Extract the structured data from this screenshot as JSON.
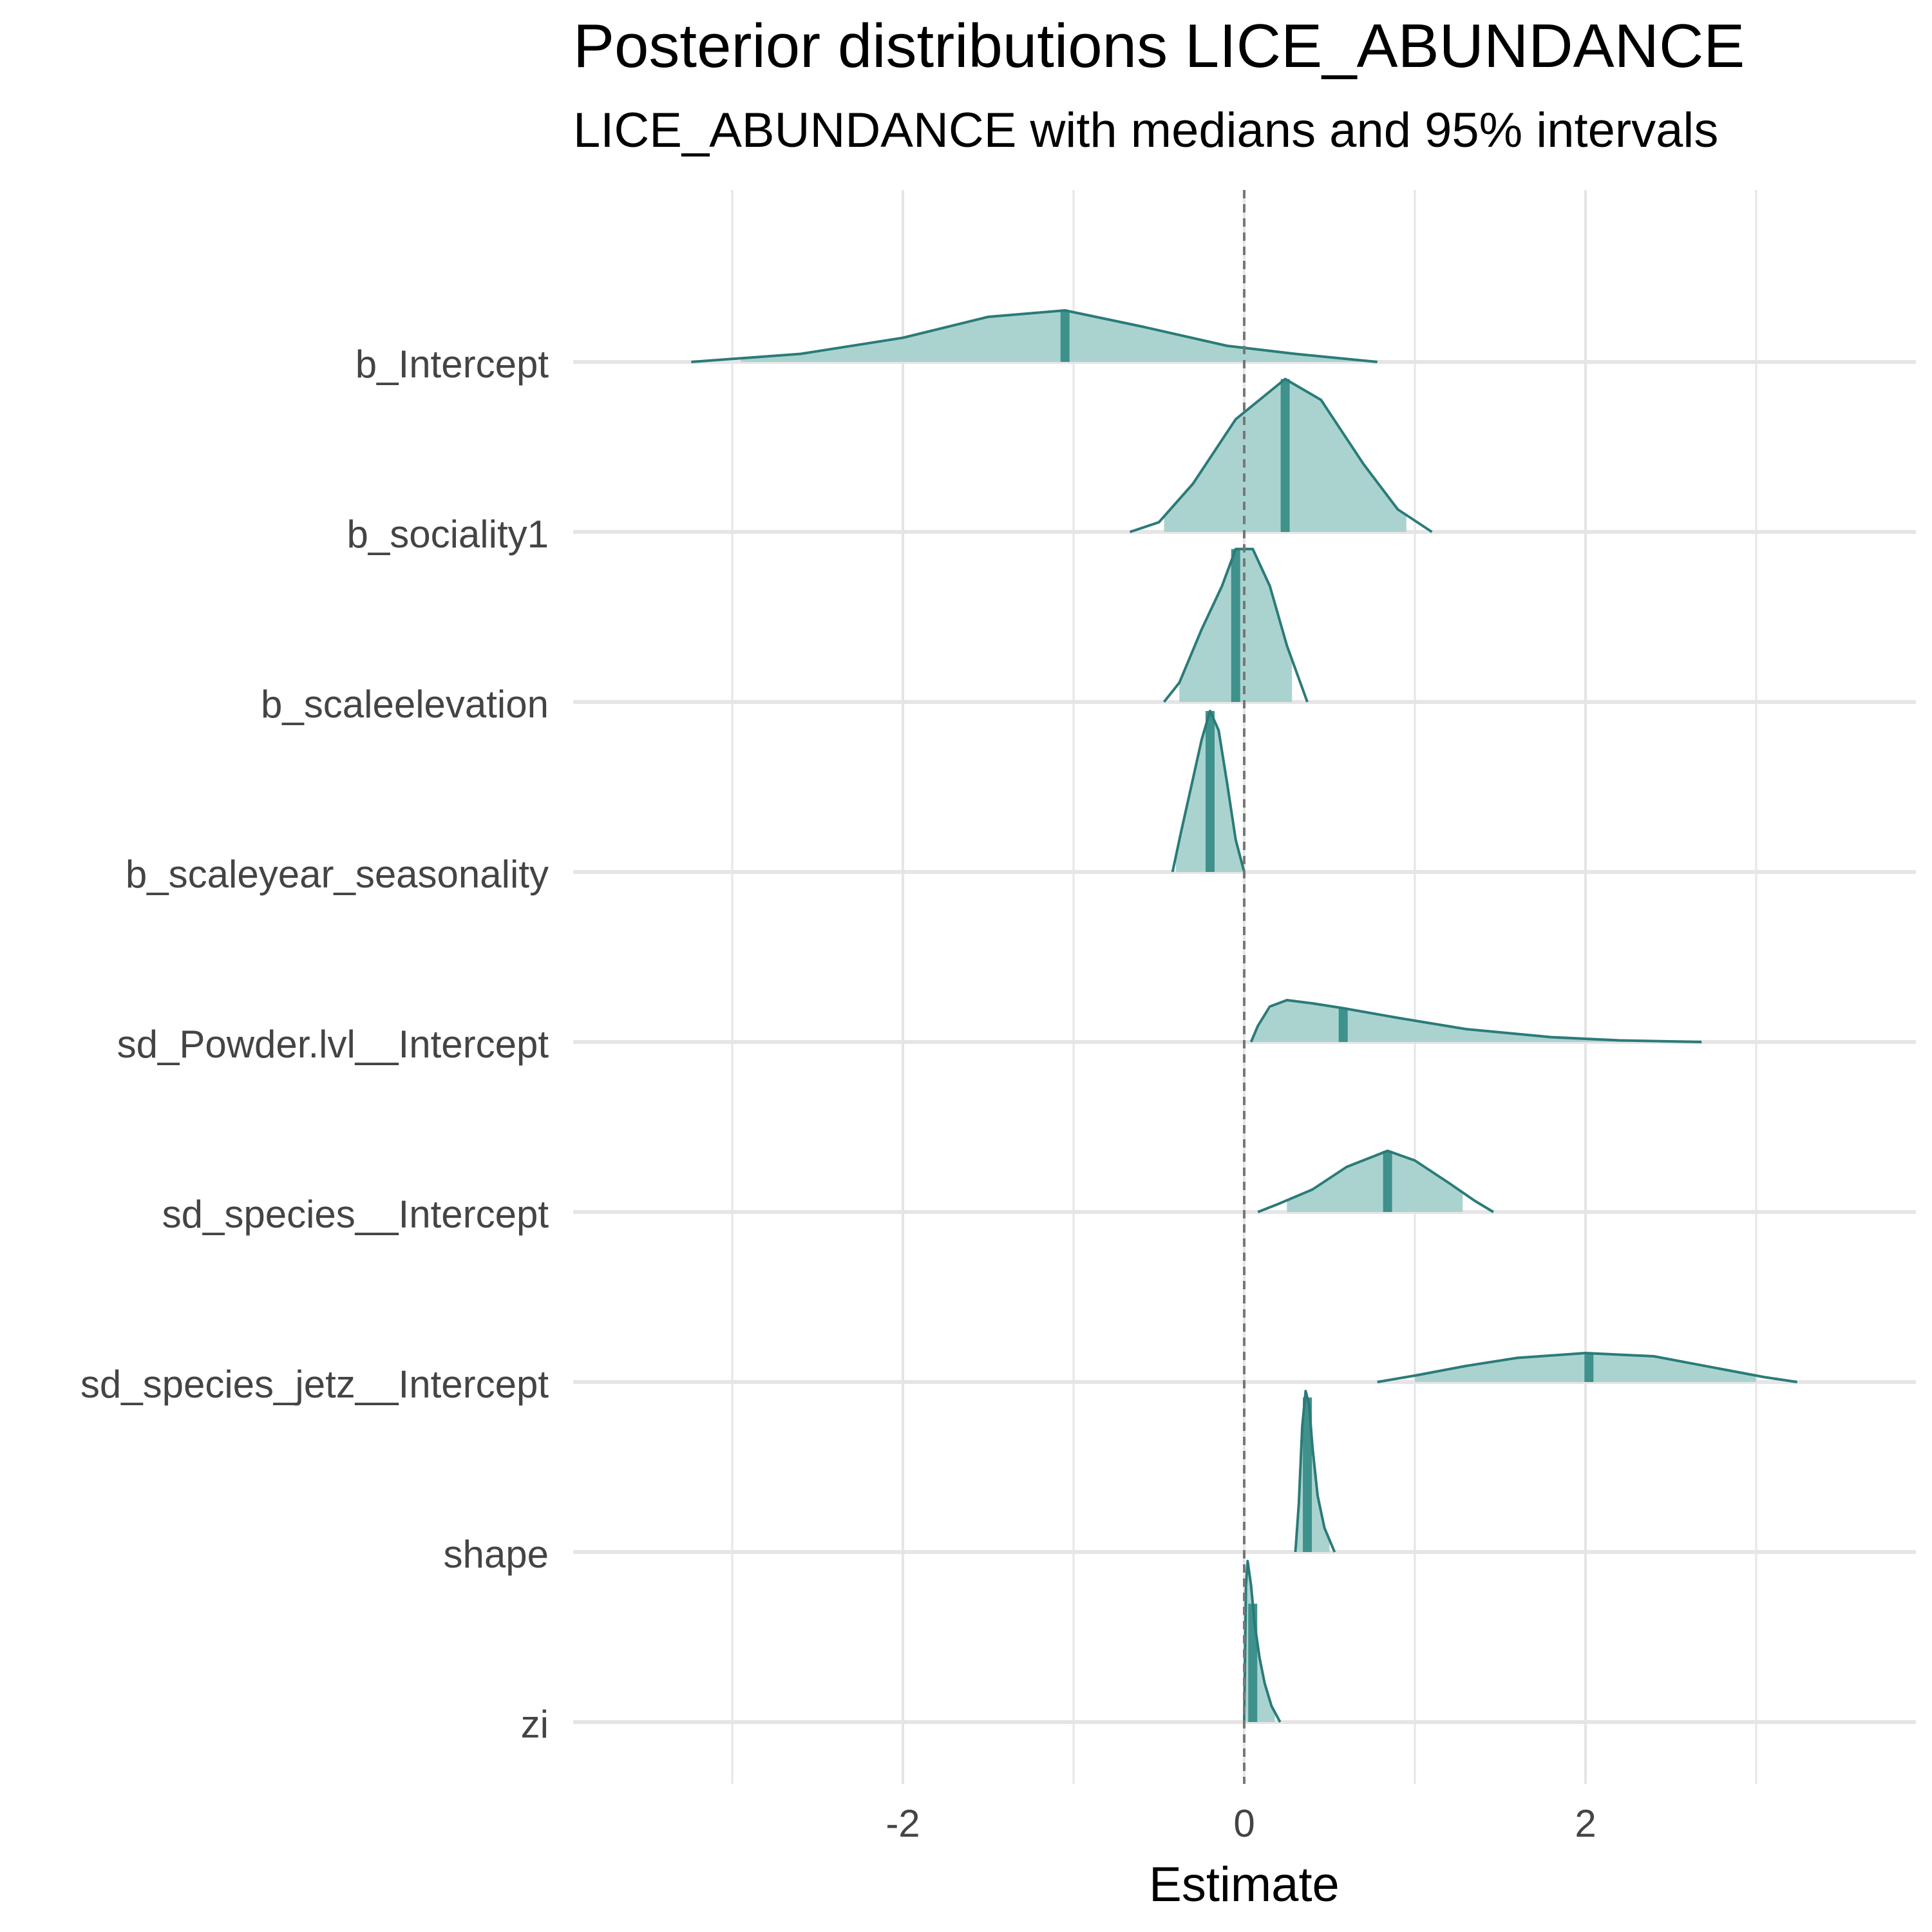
{
  "chart_data": {
    "type": "density_ridges",
    "title": "Posterior distributions LICE_ABUNDANCE",
    "subtitle": "LICE_ABUNDANCE with medians and 95% intervals",
    "xlabel": "Estimate",
    "ylabel": "",
    "xlim": [
      -3.9,
      3.9
    ],
    "x_ticks": [
      -2,
      0,
      2
    ],
    "x_tick_labels": [
      "-2",
      "0",
      "2"
    ],
    "reference_line": 0,
    "grid": true,
    "legend": "none",
    "colors": {
      "line": "#2a7b78",
      "fill": "#aad3d0",
      "median": "#3f918c",
      "ref_line": "#777777",
      "grid": "#e5e5e5"
    },
    "series": [
      {
        "name": "b_Intercept",
        "min": -3.24,
        "max": 0.78,
        "median": -1.05,
        "ci": [
          -2.95,
          0.78
        ],
        "density": [
          [
            -3.24,
            0.0
          ],
          [
            -2.6,
            0.05
          ],
          [
            -2.0,
            0.15
          ],
          [
            -1.5,
            0.28
          ],
          [
            -1.05,
            0.32
          ],
          [
            -0.6,
            0.22
          ],
          [
            -0.1,
            0.1
          ],
          [
            0.3,
            0.05
          ],
          [
            0.78,
            0.0
          ]
        ]
      },
      {
        "name": "b_sociality1",
        "min": -0.67,
        "max": 1.1,
        "median": 0.24,
        "ci": [
          -0.47,
          0.95
        ],
        "density": [
          [
            -0.67,
            0.0
          ],
          [
            -0.5,
            0.06
          ],
          [
            -0.3,
            0.3
          ],
          [
            -0.05,
            0.7
          ],
          [
            0.24,
            0.95
          ],
          [
            0.45,
            0.82
          ],
          [
            0.7,
            0.42
          ],
          [
            0.9,
            0.14
          ],
          [
            1.1,
            0.0
          ]
        ]
      },
      {
        "name": "b_scaleelevation",
        "min": -0.47,
        "max": 0.37,
        "median": -0.05,
        "ci": [
          -0.38,
          0.28
        ],
        "density": [
          [
            -0.47,
            0.0
          ],
          [
            -0.38,
            0.12
          ],
          [
            -0.25,
            0.45
          ],
          [
            -0.13,
            0.72
          ],
          [
            -0.05,
            0.95
          ],
          [
            0.05,
            0.95
          ],
          [
            0.15,
            0.72
          ],
          [
            0.25,
            0.35
          ],
          [
            0.37,
            0.0
          ]
        ]
      },
      {
        "name": "b_scaleyear_seasonality",
        "min": -0.42,
        "max": 0.0,
        "median": -0.2,
        "ci": [
          -0.4,
          -0.01
        ],
        "density": [
          [
            -0.42,
            0.0
          ],
          [
            -0.37,
            0.25
          ],
          [
            -0.3,
            0.58
          ],
          [
            -0.25,
            0.82
          ],
          [
            -0.2,
            1.0
          ],
          [
            -0.15,
            0.88
          ],
          [
            -0.1,
            0.55
          ],
          [
            -0.05,
            0.2
          ],
          [
            0.0,
            0.0
          ]
        ]
      },
      {
        "name": "sd_Powder.lvl__Intercept",
        "min": 0.04,
        "max": 2.68,
        "median": 0.58,
        "ci": [
          0.04,
          2.68
        ],
        "density": [
          [
            0.04,
            0.0
          ],
          [
            0.08,
            0.1
          ],
          [
            0.15,
            0.22
          ],
          [
            0.25,
            0.26
          ],
          [
            0.4,
            0.24
          ],
          [
            0.58,
            0.21
          ],
          [
            0.9,
            0.15
          ],
          [
            1.3,
            0.08
          ],
          [
            1.8,
            0.03
          ],
          [
            2.2,
            0.01
          ],
          [
            2.68,
            0.0
          ]
        ]
      },
      {
        "name": "sd_species__Intercept",
        "min": 0.08,
        "max": 1.46,
        "median": 0.84,
        "ci": [
          0.25,
          1.28
        ],
        "density": [
          [
            0.08,
            0.0
          ],
          [
            0.2,
            0.05
          ],
          [
            0.4,
            0.14
          ],
          [
            0.6,
            0.28
          ],
          [
            0.84,
            0.38
          ],
          [
            1.0,
            0.32
          ],
          [
            1.2,
            0.18
          ],
          [
            1.35,
            0.07
          ],
          [
            1.46,
            0.0
          ]
        ]
      },
      {
        "name": "sd_species_jetz__Intercept",
        "min": 0.78,
        "max": 3.24,
        "median": 2.02,
        "ci": [
          1.0,
          3.0
        ],
        "density": [
          [
            0.78,
            0.0
          ],
          [
            1.0,
            0.04
          ],
          [
            1.3,
            0.1
          ],
          [
            1.6,
            0.15
          ],
          [
            2.0,
            0.18
          ],
          [
            2.4,
            0.16
          ],
          [
            2.8,
            0.08
          ],
          [
            3.05,
            0.03
          ],
          [
            3.24,
            0.0
          ]
        ]
      },
      {
        "name": "shape",
        "min": 0.3,
        "max": 0.53,
        "median": 0.37,
        "ci": [
          0.31,
          0.5
        ],
        "density": [
          [
            0.3,
            0.0
          ],
          [
            0.32,
            0.3
          ],
          [
            0.34,
            0.78
          ],
          [
            0.36,
            1.0
          ],
          [
            0.38,
            0.92
          ],
          [
            0.4,
            0.65
          ],
          [
            0.43,
            0.35
          ],
          [
            0.47,
            0.15
          ],
          [
            0.53,
            0.0
          ]
        ]
      },
      {
        "name": "zi",
        "min": 0.0,
        "max": 0.21,
        "median": 0.05,
        "ci": [
          0.01,
          0.18
        ],
        "density": [
          [
            0.0,
            0.0
          ],
          [
            0.01,
            0.85
          ],
          [
            0.02,
            1.0
          ],
          [
            0.04,
            0.85
          ],
          [
            0.06,
            0.62
          ],
          [
            0.09,
            0.4
          ],
          [
            0.12,
            0.24
          ],
          [
            0.16,
            0.1
          ],
          [
            0.21,
            0.0
          ]
        ]
      }
    ]
  }
}
